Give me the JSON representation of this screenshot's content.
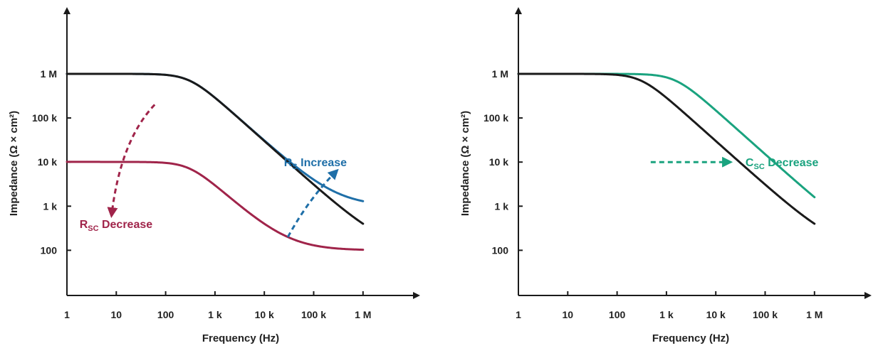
{
  "chart_data": [
    {
      "type": "line",
      "xscale": "log",
      "yscale": "log",
      "xlabel": "Frequency (Hz)",
      "ylabel": "Impedance (Ω × cm²)",
      "xlim": [
        1,
        1000000
      ],
      "ylim": [
        1,
        1000000
      ],
      "x_ticks": [
        {
          "value": 1,
          "label": "1"
        },
        {
          "value": 10,
          "label": "10"
        },
        {
          "value": 100,
          "label": "100"
        },
        {
          "value": 1000,
          "label": "1 k"
        },
        {
          "value": 10000,
          "label": "10 k"
        },
        {
          "value": 100000,
          "label": "100 k"
        },
        {
          "value": 1000000,
          "label": "1 M"
        }
      ],
      "y_ticks": [
        {
          "value": 100,
          "label": "100"
        },
        {
          "value": 1000,
          "label": "1 k"
        },
        {
          "value": 10000,
          "label": "10 k"
        },
        {
          "value": 100000,
          "label": "100 k"
        },
        {
          "value": 1000000,
          "label": "1 M"
        }
      ],
      "grid": false,
      "series": [
        {
          "key": "baseline",
          "color": "#1a1a1a",
          "rs": 100,
          "rsc": 1000000,
          "fc": 300
        },
        {
          "key": "rs_increase",
          "color": "#1f6fa8",
          "rs": 1000,
          "rsc": 1000000,
          "fc": 300
        },
        {
          "key": "rsc_decrease",
          "color": "#a0244a",
          "rs": 100,
          "rsc": 10000,
          "fc": 300
        }
      ],
      "annotations": [
        {
          "key": "rs",
          "main": "R",
          "sub": "S",
          "rest": " Increase",
          "color": "#1f6fa8",
          "x": 25000,
          "y": 10000
        },
        {
          "key": "rsc",
          "main": "R",
          "sub": "SC",
          "rest": " Decrease",
          "color": "#a0244a",
          "x": 1.8,
          "y": 400
        }
      ],
      "arrows": [
        {
          "key": "rs-increase-arrow",
          "color": "#1f6fa8",
          "from": [
            30000,
            200
          ],
          "ctrl": [
            80000,
            1500
          ],
          "to": [
            300000,
            6500
          ]
        },
        {
          "key": "rsc-decrease-arrow",
          "color": "#a0244a",
          "from": [
            60,
            200000
          ],
          "ctrl": [
            12,
            30000
          ],
          "to": [
            8,
            600
          ]
        }
      ]
    },
    {
      "type": "line",
      "xscale": "log",
      "yscale": "log",
      "xlabel": "Frequency (Hz)",
      "ylabel": "Impedance (Ω × cm²)",
      "xlim": [
        1,
        1000000
      ],
      "ylim": [
        1,
        1000000
      ],
      "x_ticks": [
        {
          "value": 1,
          "label": "1"
        },
        {
          "value": 10,
          "label": "10"
        },
        {
          "value": 100,
          "label": "100"
        },
        {
          "value": 1000,
          "label": "1 k"
        },
        {
          "value": 10000,
          "label": "10 k"
        },
        {
          "value": 100000,
          "label": "100 k"
        },
        {
          "value": 1000000,
          "label": "1 M"
        }
      ],
      "y_ticks": [
        {
          "value": 100,
          "label": "100"
        },
        {
          "value": 1000,
          "label": "1 k"
        },
        {
          "value": 10000,
          "label": "10 k"
        },
        {
          "value": 100000,
          "label": "100 k"
        },
        {
          "value": 1000000,
          "label": "1 M"
        }
      ],
      "grid": false,
      "series": [
        {
          "key": "baseline",
          "color": "#1a1a1a",
          "rs": 100,
          "rsc": 1000000,
          "fc": 300
        },
        {
          "key": "csc_decrease",
          "color": "#1aa37f",
          "rs": 100,
          "rsc": 1000000,
          "fc": 1500
        }
      ],
      "annotations": [
        {
          "key": "csc",
          "main": "C",
          "sub": "SC",
          "rest": " Decrease",
          "color": "#1aa37f",
          "x": 40000,
          "y": 10000
        }
      ],
      "arrows": [
        {
          "key": "csc-decrease-arrow",
          "color": "#1aa37f",
          "from": [
            480,
            10000
          ],
          "ctrl": [
            2500,
            10000
          ],
          "to": [
            20000,
            10000
          ],
          "straight": true
        }
      ]
    }
  ]
}
